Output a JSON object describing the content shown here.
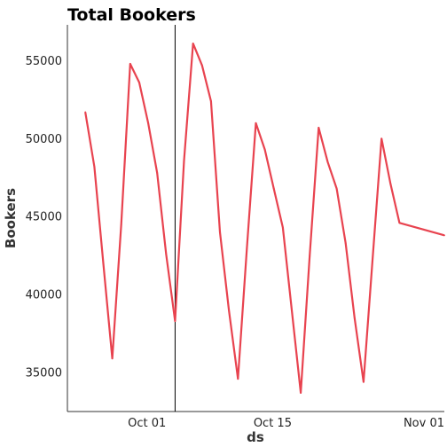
{
  "chart_data": {
    "type": "line",
    "title": "Total Bookers",
    "xlabel": "ds",
    "ylabel": "Bookers",
    "ylim": [
      32500,
      57300
    ],
    "xlim": [
      "2024-09-20",
      "2024-11-01"
    ],
    "grid": false,
    "xticks": [
      {
        "value": "2024-10-01",
        "label": "Oct 01"
      },
      {
        "value": "2024-10-15",
        "label": "Oct 15"
      },
      {
        "value": "2024-11-01",
        "label": "Nov 01"
      }
    ],
    "yticks": [
      35000,
      40000,
      45000,
      50000,
      55000
    ],
    "vline": {
      "x": "2024-10-02",
      "color": "#000000"
    },
    "series": [
      {
        "color": "#e8434f",
        "points": [
          {
            "x": "2024-09-22",
            "y": 51700
          },
          {
            "x": "2024-09-23",
            "y": 48200
          },
          {
            "x": "2024-09-24",
            "y": 42000
          },
          {
            "x": "2024-09-25",
            "y": 35900
          },
          {
            "x": "2024-09-26",
            "y": 44500
          },
          {
            "x": "2024-09-27",
            "y": 54800
          },
          {
            "x": "2024-09-28",
            "y": 53600
          },
          {
            "x": "2024-09-29",
            "y": 51000
          },
          {
            "x": "2024-09-30",
            "y": 47800
          },
          {
            "x": "2024-10-01",
            "y": 42600
          },
          {
            "x": "2024-10-02",
            "y": 38300
          },
          {
            "x": "2024-10-03",
            "y": 48600
          },
          {
            "x": "2024-10-04",
            "y": 56100
          },
          {
            "x": "2024-10-05",
            "y": 54700
          },
          {
            "x": "2024-10-06",
            "y": 52400
          },
          {
            "x": "2024-10-07",
            "y": 44000
          },
          {
            "x": "2024-10-08",
            "y": 39000
          },
          {
            "x": "2024-10-09",
            "y": 34600
          },
          {
            "x": "2024-10-10",
            "y": 43000
          },
          {
            "x": "2024-10-11",
            "y": 51000
          },
          {
            "x": "2024-10-12",
            "y": 49300
          },
          {
            "x": "2024-10-13",
            "y": 46800
          },
          {
            "x": "2024-10-14",
            "y": 44300
          },
          {
            "x": "2024-10-15",
            "y": 39000
          },
          {
            "x": "2024-10-16",
            "y": 33700
          },
          {
            "x": "2024-10-17",
            "y": 42500
          },
          {
            "x": "2024-10-18",
            "y": 50700
          },
          {
            "x": "2024-10-19",
            "y": 48500
          },
          {
            "x": "2024-10-20",
            "y": 46800
          },
          {
            "x": "2024-10-21",
            "y": 43300
          },
          {
            "x": "2024-10-22",
            "y": 38500
          },
          {
            "x": "2024-10-23",
            "y": 34400
          },
          {
            "x": "2024-10-24",
            "y": 42200
          },
          {
            "x": "2024-10-25",
            "y": 50000
          },
          {
            "x": "2024-10-26",
            "y": 47100
          },
          {
            "x": "2024-10-27",
            "y": 44600
          },
          {
            "x": "2024-11-01",
            "y": 43800
          }
        ]
      }
    ]
  }
}
